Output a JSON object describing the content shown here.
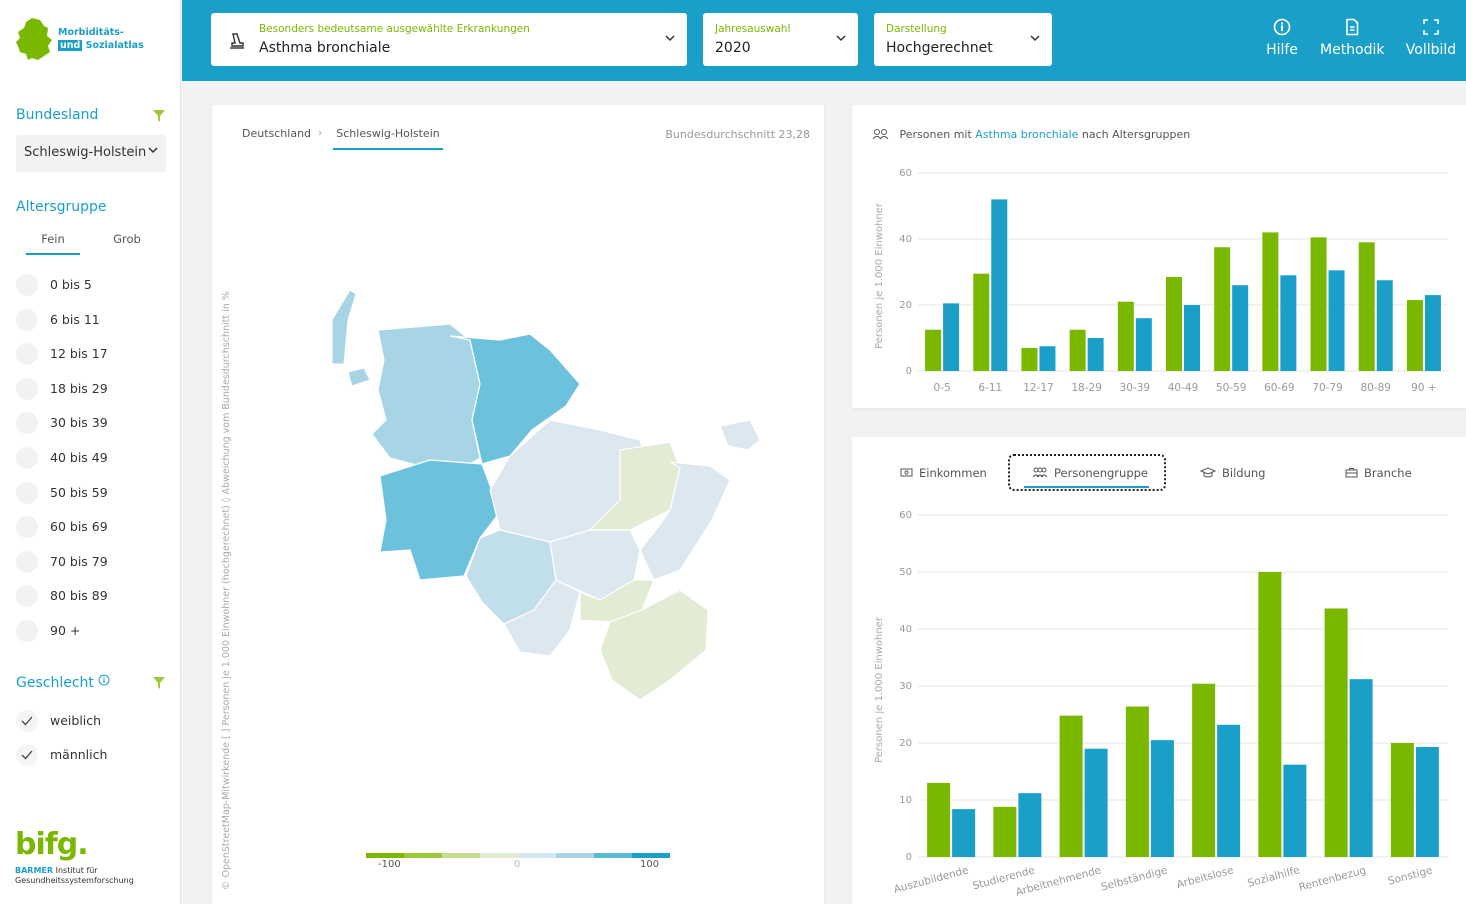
{
  "sidebar": {
    "logo": {
      "line1": "Morbiditäts-",
      "und": "und",
      "line2": "Sozialatlas"
    },
    "bundesland_title": "Bundesland",
    "bundesland_value": "Schleswig-Holstein",
    "altersgruppe_title": "Altersgruppe",
    "segments": [
      "Fein",
      "Grob"
    ],
    "active_segment": "Fein",
    "age_groups": [
      "0 bis 5",
      "6 bis 11",
      "12 bis 17",
      "18 bis 29",
      "30 bis 39",
      "40 bis 49",
      "50 bis 59",
      "60 bis 69",
      "70 bis 79",
      "80 bis 89",
      "90 +"
    ],
    "geschlecht_title": "Geschlecht",
    "geschlecht_options": [
      {
        "label": "weiblich",
        "checked": true
      },
      {
        "label": "männlich",
        "checked": true
      }
    ],
    "bifg": {
      "word": "bifg.",
      "barmer": "BARMER",
      "line1": "Institut für",
      "line2": "Gesundheitssystemforschung"
    }
  },
  "header": {
    "disease_label": "Besonders bedeutsame ausgewählte Erkrankungen",
    "disease_value": "Asthma bronchiale",
    "year_label": "Jahresauswahl",
    "year_value": "2020",
    "view_label": "Darstellung",
    "view_value": "Hochgerechnet",
    "buttons": [
      "Hilfe",
      "Methodik",
      "Vollbild"
    ]
  },
  "map_card": {
    "breadcrumb": [
      "Deutschland",
      "Schleswig-Holstein"
    ],
    "average_label": "Bundesdurchschnitt 23,28",
    "vertical_text": "©  OpenStreetMap-Mitwirkende    [ ]  Personen je 1.000 Einwohner (hochgerechnet)    ◊  Abweichung vom Bundesdurchschnitt in %",
    "legend_labels": [
      "-100",
      "0",
      "100"
    ],
    "legend_colors": [
      "#7ab800",
      "#9cc93a",
      "#c5dd8e",
      "#e2ebd3",
      "#d3e8f0",
      "#a8d5e6",
      "#5bb9d8",
      "#1aa0c8"
    ]
  },
  "age_chart": {
    "title_prefix": "Personen mit",
    "title_disease": "Asthma bronchiale",
    "title_suffix": "nach Altersgruppen"
  },
  "tabs": [
    "Einkommen",
    "Personengruppe",
    "Bildung",
    "Branche"
  ],
  "active_tab": "Personengruppe",
  "colors": {
    "green": "#7ab800",
    "blue": "#1aa0c8"
  },
  "chart_data": [
    {
      "type": "bar",
      "ylabel": "Personen je 1.000 Einwohner",
      "ylim": [
        0,
        60
      ],
      "yticks": [
        0,
        20,
        40,
        60
      ],
      "categories": [
        "0-5",
        "6-11",
        "12-17",
        "18-29",
        "30-39",
        "40-49",
        "50-59",
        "60-69",
        "70-79",
        "80-89",
        "90 +"
      ],
      "series": [
        {
          "values": [
            12.5,
            29.5,
            7,
            12.5,
            21,
            28.5,
            37.5,
            42,
            40.5,
            39,
            21.5
          ]
        },
        {
          "values": [
            20.5,
            52,
            7.5,
            10,
            16,
            20,
            26,
            29,
            30.5,
            27.5,
            23
          ]
        }
      ]
    },
    {
      "type": "bar",
      "ylabel": "Personen je 1.000 Einwohner",
      "ylim": [
        0,
        60
      ],
      "yticks": [
        0,
        10,
        20,
        30,
        40,
        50,
        60
      ],
      "categories": [
        "Auszubildende",
        "Studierende",
        "Arbeitnehmende",
        "Selbständige",
        "Arbeitslose",
        "Sozialhilfe",
        "Rentenbezug",
        "Sonstige"
      ],
      "series": [
        {
          "values": [
            13,
            8.8,
            24.8,
            26.4,
            30.4,
            50,
            43.6,
            20
          ]
        },
        {
          "values": [
            8.4,
            11.2,
            19,
            20.5,
            23.2,
            16.2,
            31.2,
            19.3
          ]
        }
      ]
    }
  ]
}
